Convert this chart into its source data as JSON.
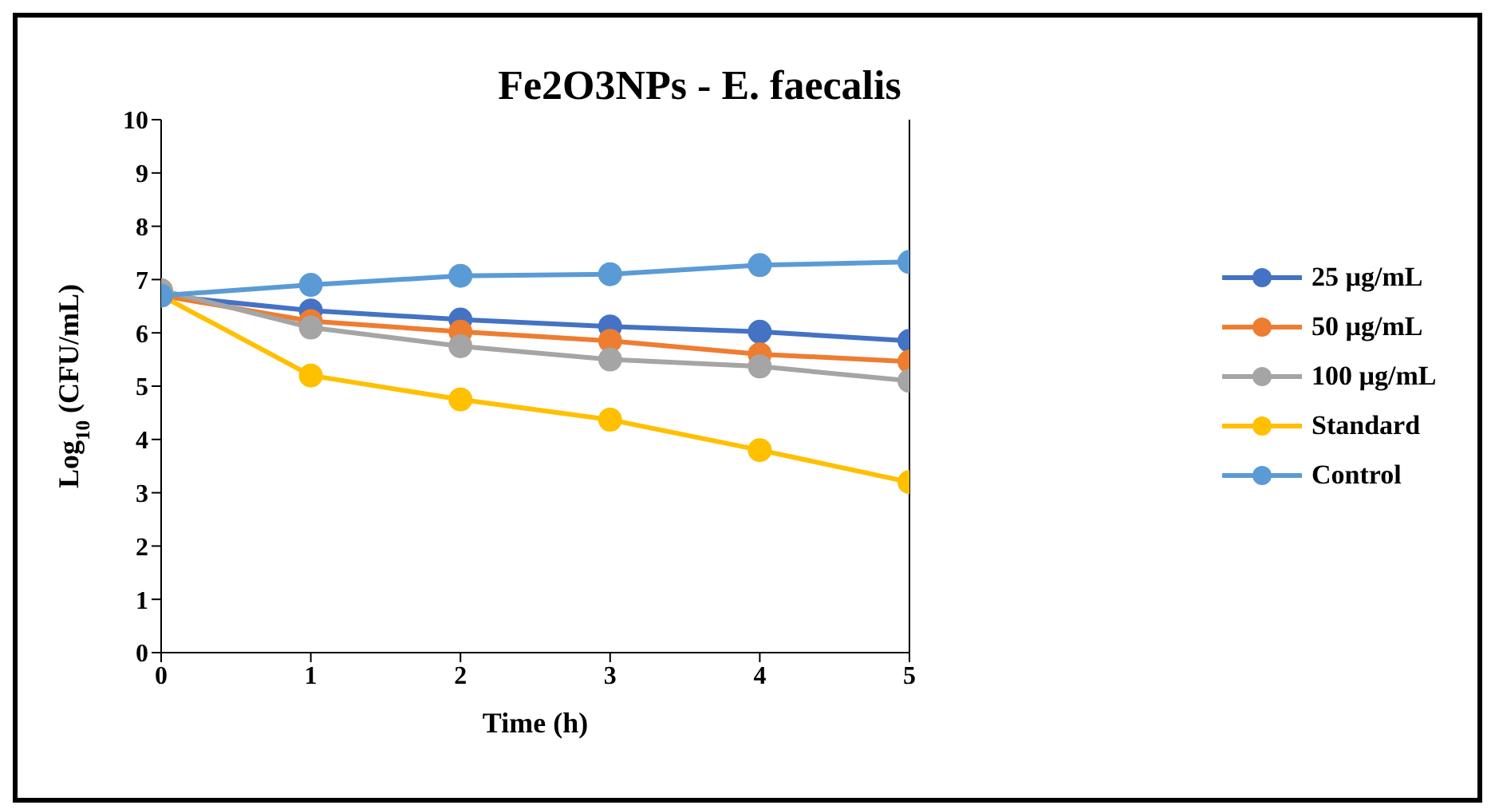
{
  "chart_data": {
    "type": "line",
    "title": "Fe2O3NPs - E. faecalis",
    "xlabel": "Time (h)",
    "ylabel": "Log$_{10}$ (CFU/mL)",
    "x": [
      0,
      1,
      2,
      3,
      4,
      5
    ],
    "xlim": [
      0,
      5
    ],
    "xticks": [
      0,
      1,
      2,
      3,
      4,
      5
    ],
    "ylim": [
      0,
      10
    ],
    "yticks": [
      0,
      1,
      2,
      3,
      4,
      5,
      6,
      7,
      8,
      9,
      10
    ],
    "grid": false,
    "legend": "right",
    "marker": "circle",
    "line_style": "solid",
    "series": [
      {
        "name": "25 µg/mL",
        "color": "#4472c4",
        "values": [
          6.7,
          6.42,
          6.25,
          6.12,
          6.02,
          5.85
        ]
      },
      {
        "name": "50 µg/mL",
        "color": "#ed7d31",
        "values": [
          6.7,
          6.22,
          6.02,
          5.85,
          5.6,
          5.46
        ]
      },
      {
        "name": "100 µg/mL",
        "color": "#a5a5a5",
        "values": [
          6.8,
          6.1,
          5.75,
          5.5,
          5.37,
          5.1
        ]
      },
      {
        "name": "Standard",
        "color": "#ffc000",
        "values": [
          6.7,
          5.2,
          4.75,
          4.37,
          3.8,
          3.2
        ]
      },
      {
        "name": "Control",
        "color": "#5b9bd5",
        "values": [
          6.7,
          6.9,
          7.07,
          7.1,
          7.27,
          7.33
        ]
      }
    ]
  }
}
